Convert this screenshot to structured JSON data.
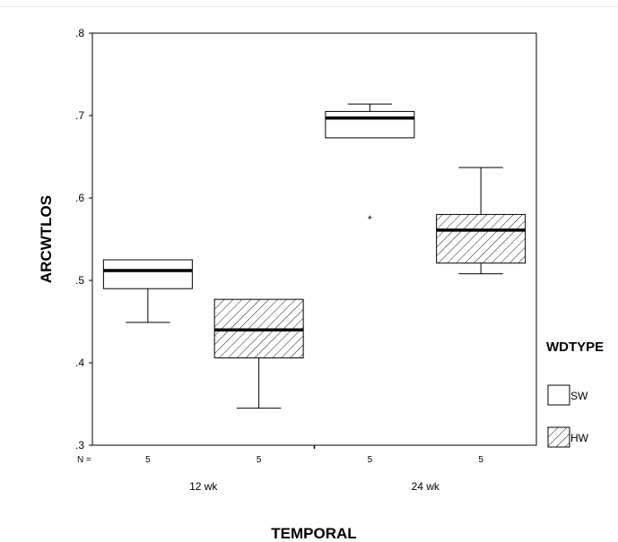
{
  "chart_data": {
    "type": "boxplot",
    "title": "",
    "xlabel": "TEMPORAL",
    "ylabel": "ARCWTLOS",
    "ylim": [
      0.3,
      0.8
    ],
    "yticks": [
      0.3,
      0.4,
      0.5,
      0.6,
      0.7,
      0.8
    ],
    "ytick_labels": [
      ".3",
      ".4",
      ".5",
      ".6",
      ".7",
      ".8"
    ],
    "categories": [
      "12 wk",
      "24 wk"
    ],
    "n_label": "N =",
    "legend": {
      "title": "WDTYPE",
      "position": "right",
      "entries": [
        {
          "label": "SW",
          "fill": "none"
        },
        {
          "label": "HW",
          "fill": "hatched"
        }
      ]
    },
    "series": [
      {
        "name": "SW",
        "fill": "none",
        "boxes": [
          {
            "category": "12 wk",
            "n": "5",
            "min": 0.449,
            "q1": 0.49,
            "median": 0.512,
            "q3": 0.525,
            "max": 0.525
          },
          {
            "category": "24 wk",
            "n": "5",
            "min": 0.673,
            "q1": 0.673,
            "median": 0.697,
            "q3": 0.705,
            "max": 0.714,
            "outliers": [
              0.578
            ]
          }
        ]
      },
      {
        "name": "HW",
        "fill": "hatched",
        "boxes": [
          {
            "category": "12 wk",
            "n": "5",
            "min": 0.345,
            "q1": 0.406,
            "median": 0.44,
            "q3": 0.477,
            "max": 0.477
          },
          {
            "category": "24 wk",
            "n": "5",
            "min": 0.508,
            "q1": 0.521,
            "median": 0.561,
            "q3": 0.58,
            "max": 0.637
          }
        ]
      }
    ],
    "grid": false,
    "colors": {
      "line": "#000000",
      "background": "#ffffff"
    }
  }
}
